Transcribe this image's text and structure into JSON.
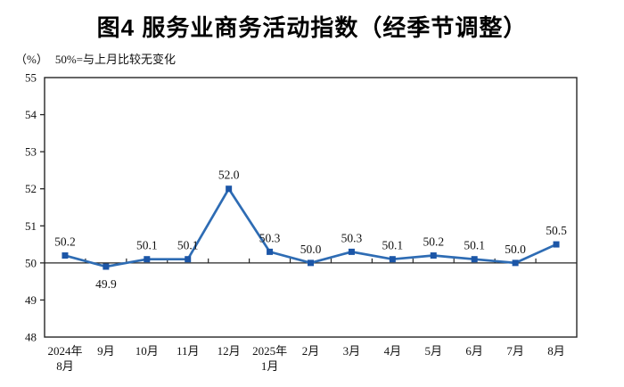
{
  "chart_data": {
    "type": "line",
    "title": "图4 服务业商务活动指数（经季节调整）",
    "unit_label": "（%）",
    "note": "50%=与上月比较无变化",
    "categories": [
      "2024年\n8月",
      "9月",
      "10月",
      "11月",
      "12月",
      "2025年\n1月",
      "2月",
      "3月",
      "4月",
      "5月",
      "6月",
      "7月",
      "8月"
    ],
    "series": [
      {
        "name": "服务业商务活动指数",
        "values": [
          50.2,
          49.9,
          50.1,
          50.1,
          52.0,
          50.3,
          50.0,
          50.3,
          50.1,
          50.2,
          50.1,
          50.0,
          50.5
        ]
      }
    ],
    "data_labels": [
      "50.2",
      "49.9",
      "50.1",
      "50.1",
      "52.0",
      "50.3",
      "50.0",
      "50.3",
      "50.1",
      "50.2",
      "50.1",
      "50.0",
      "50.5"
    ],
    "label_below_indices": [
      1
    ],
    "ylim": [
      48,
      55
    ],
    "ytick_step": 1,
    "yticks": [
      48,
      49,
      50,
      51,
      52,
      53,
      54,
      55
    ],
    "reference_line": 50,
    "grid": false,
    "legend": false,
    "colors": {
      "line": "#2e6cb4",
      "marker": "#1c56a7",
      "axis": "#262626",
      "text": "#111111"
    }
  }
}
